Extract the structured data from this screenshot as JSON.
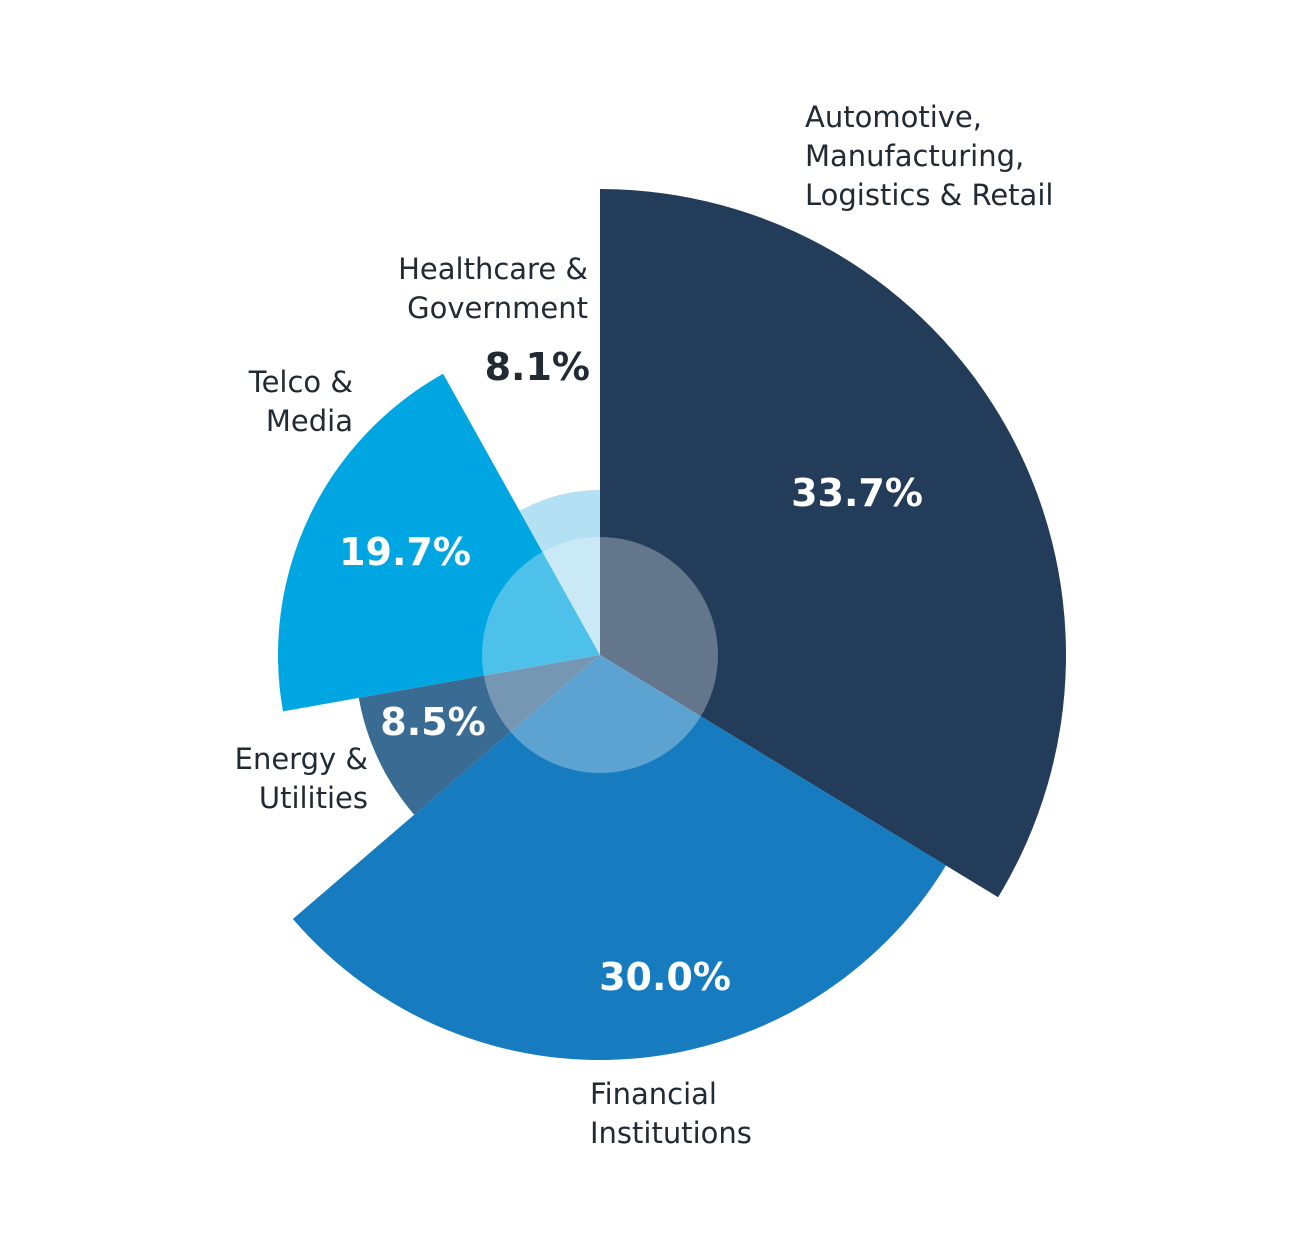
{
  "chart_data": {
    "type": "pie",
    "categories": [
      "Automotive, Manufacturing, Logistics & Retail",
      "Financial Institutions",
      "Energy & Utilities",
      "Telco & Media",
      "Healthcare & Government"
    ],
    "values": [
      33.7,
      30.0,
      8.5,
      19.7,
      8.1
    ],
    "value_labels": [
      "33.7%",
      "30.0%",
      "8.5%",
      "19.7%",
      "8.1%"
    ],
    "colors": [
      "#223c5a",
      "#177bbf",
      "#3a6b93",
      "#00a6e1",
      "#b3e0f2"
    ]
  }
}
